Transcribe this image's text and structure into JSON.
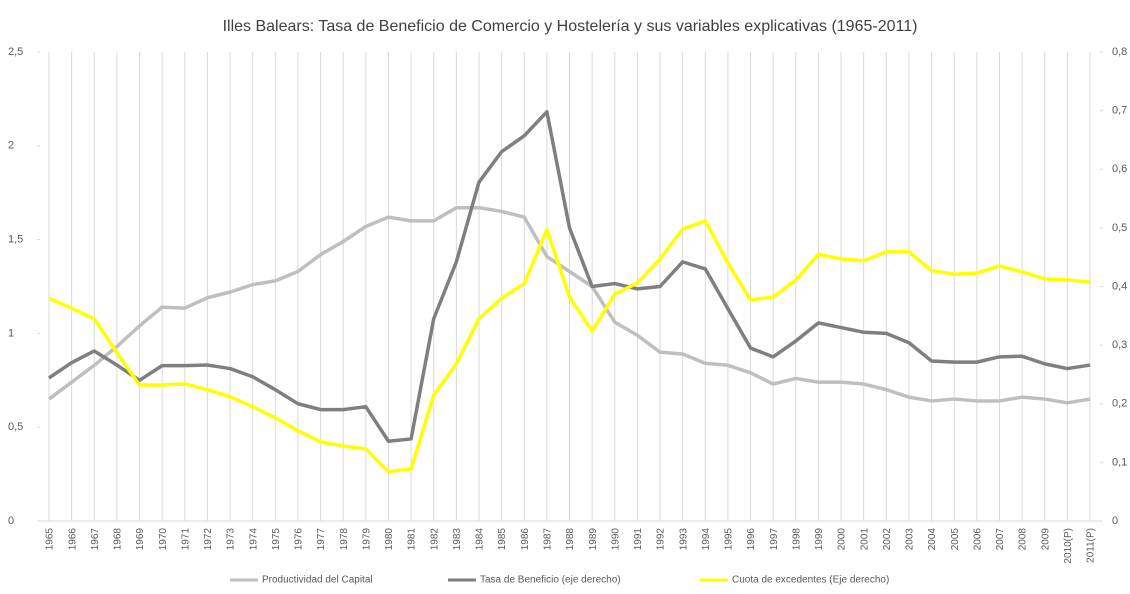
{
  "chart_data": {
    "type": "line",
    "title": "Illes Balears: Tasa de Beneficio de Comercio y Hostelería y sus variables explicativas (1965-2011)",
    "categories": [
      "1965",
      "1966",
      "1967",
      "1968",
      "1969",
      "1970",
      "1971",
      "1972",
      "1973",
      "1974",
      "1975",
      "1976",
      "1977",
      "1978",
      "1979",
      "1980",
      "1981",
      "1982",
      "1983",
      "1984",
      "1985",
      "1986",
      "1987",
      "1988",
      "1989",
      "1990",
      "1991",
      "1992",
      "1993",
      "1994",
      "1995",
      "1996",
      "1997",
      "1998",
      "1999",
      "2000",
      "2001",
      "2002",
      "2003",
      "2004",
      "2005",
      "2006",
      "2007",
      "2008",
      "2009",
      "2010(P)",
      "2011(P)"
    ],
    "series": [
      {
        "name": "Productividad del Capital",
        "color": "#bfbfbf",
        "axis": "y",
        "values": [
          0.65,
          0.74,
          0.83,
          0.93,
          1.04,
          1.14,
          1.135,
          1.19,
          1.22,
          1.26,
          1.28,
          1.33,
          1.42,
          1.49,
          1.57,
          1.62,
          1.6,
          1.6,
          1.67,
          1.67,
          1.65,
          1.62,
          1.41,
          1.33,
          1.25,
          1.06,
          0.99,
          0.9,
          0.89,
          0.84,
          0.83,
          0.79,
          0.73,
          0.76,
          0.74,
          0.74,
          0.73,
          0.7,
          0.66,
          0.64,
          0.65,
          0.64,
          0.64,
          0.66,
          0.65,
          0.63,
          0.65
        ]
      },
      {
        "name": "Tasa de Beneficio (eje derecho)",
        "color": "#7f7f7f",
        "axis": "y2",
        "values": [
          0.244,
          0.27,
          0.29,
          0.266,
          0.24,
          0.265,
          0.265,
          0.266,
          0.26,
          0.246,
          0.224,
          0.2,
          0.19,
          0.19,
          0.195,
          0.136,
          0.14,
          0.345,
          0.442,
          0.578,
          0.63,
          0.657,
          0.698,
          0.5,
          0.4,
          0.405,
          0.396,
          0.4,
          0.442,
          0.43,
          0.362,
          0.295,
          0.28,
          0.307,
          0.338,
          0.33,
          0.322,
          0.32,
          0.304,
          0.273,
          0.271,
          0.271,
          0.28,
          0.281,
          0.268,
          0.26,
          0.266
        ]
      },
      {
        "name": "Cuota de excedentes (Eje derecho)",
        "color": "#ffff00",
        "axis": "y2",
        "values": [
          0.38,
          0.363,
          0.345,
          0.287,
          0.232,
          0.232,
          0.234,
          0.224,
          0.212,
          0.195,
          0.176,
          0.154,
          0.135,
          0.128,
          0.123,
          0.084,
          0.089,
          0.215,
          0.268,
          0.345,
          0.38,
          0.405,
          0.497,
          0.382,
          0.324,
          0.387,
          0.406,
          0.447,
          0.498,
          0.512,
          0.44,
          0.377,
          0.382,
          0.411,
          0.455,
          0.447,
          0.444,
          0.459,
          0.459,
          0.427,
          0.421,
          0.423,
          0.435,
          0.425,
          0.413,
          0.411,
          0.408
        ]
      }
    ],
    "ylim": [
      0,
      2.5
    ],
    "yticks": [
      0,
      {
        "value": 0.5,
        "label": "0,5"
      },
      1,
      {
        "value": 1.5,
        "label": "1,5"
      },
      2,
      {
        "value": 2.5,
        "label": "2,5"
      }
    ],
    "y2lim": [
      0,
      0.8
    ],
    "y2ticks": [
      0,
      {
        "value": 0.1,
        "label": "0,1"
      },
      {
        "value": 0.2,
        "label": "0,2"
      },
      {
        "value": 0.3,
        "label": "0,3"
      },
      {
        "value": 0.4,
        "label": "0,4"
      },
      {
        "value": 0.5,
        "label": "0,5"
      },
      {
        "value": 0.6,
        "label": "0,6"
      },
      {
        "value": 0.7,
        "label": "0,7"
      },
      {
        "value": 0.8,
        "label": "0,8"
      }
    ],
    "grid": "vertical",
    "legend": "bottom"
  }
}
